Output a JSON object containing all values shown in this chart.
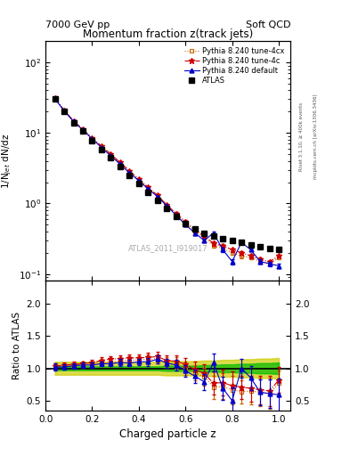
{
  "title_top_left": "7000 GeV pp",
  "title_top_right": "Soft QCD",
  "plot_title": "Momentum fraction z(track jets)",
  "ylabel_main": "1/N$_{jet}$ dN/dz",
  "ylabel_ratio": "Ratio to ATLAS",
  "xlabel": "Charged particle z",
  "right_label_top": "Rivet 3.1.10, ≥ 400k events",
  "right_label_bot": "mcplots.cern.ch [arXiv:1306.3436]",
  "watermark": "ATLAS_2011_I919017",
  "legend": [
    "ATLAS",
    "Pythia 8.240 default",
    "Pythia 8.240 tune-4c",
    "Pythia 8.240 tune-4cx"
  ],
  "z_values": [
    0.04,
    0.08,
    0.12,
    0.16,
    0.2,
    0.24,
    0.28,
    0.32,
    0.36,
    0.4,
    0.44,
    0.48,
    0.52,
    0.56,
    0.6,
    0.64,
    0.68,
    0.72,
    0.76,
    0.8,
    0.84,
    0.88,
    0.92,
    0.96,
    1.0
  ],
  "atlas_y": [
    30.0,
    20.0,
    14.0,
    10.5,
    7.8,
    5.8,
    4.4,
    3.3,
    2.5,
    1.9,
    1.45,
    1.1,
    0.85,
    0.65,
    0.52,
    0.43,
    0.38,
    0.35,
    0.32,
    0.3,
    0.28,
    0.26,
    0.24,
    0.23,
    0.22
  ],
  "atlas_err": [
    1.2,
    0.8,
    0.55,
    0.4,
    0.3,
    0.22,
    0.17,
    0.13,
    0.1,
    0.08,
    0.06,
    0.05,
    0.04,
    0.035,
    0.03,
    0.025,
    0.022,
    0.02,
    0.018,
    0.016,
    0.015,
    0.014,
    0.013,
    0.013,
    0.012
  ],
  "pythia_default_y": [
    30.5,
    20.5,
    14.5,
    11.0,
    8.2,
    6.2,
    4.7,
    3.6,
    2.7,
    2.1,
    1.6,
    1.25,
    0.92,
    0.68,
    0.5,
    0.38,
    0.3,
    0.38,
    0.22,
    0.15,
    0.28,
    0.22,
    0.15,
    0.14,
    0.13
  ],
  "pythia_default_err": [
    0.8,
    0.55,
    0.4,
    0.3,
    0.22,
    0.17,
    0.13,
    0.1,
    0.08,
    0.06,
    0.05,
    0.04,
    0.035,
    0.03,
    0.025,
    0.02,
    0.018,
    0.016,
    0.015,
    0.013,
    0.012,
    0.011,
    0.01,
    0.01,
    0.009
  ],
  "pythia_4c_y": [
    31.0,
    21.0,
    14.8,
    11.2,
    8.5,
    6.5,
    5.0,
    3.8,
    2.9,
    2.2,
    1.7,
    1.3,
    0.95,
    0.72,
    0.55,
    0.42,
    0.35,
    0.27,
    0.25,
    0.22,
    0.2,
    0.18,
    0.16,
    0.15,
    0.18
  ],
  "pythia_4c_err": [
    0.9,
    0.6,
    0.42,
    0.32,
    0.24,
    0.18,
    0.14,
    0.11,
    0.08,
    0.07,
    0.055,
    0.045,
    0.037,
    0.032,
    0.027,
    0.022,
    0.019,
    0.017,
    0.015,
    0.013,
    0.012,
    0.011,
    0.01,
    0.009,
    0.009
  ],
  "pythia_4cx_y": [
    30.8,
    20.8,
    14.6,
    11.0,
    8.3,
    6.3,
    4.8,
    3.7,
    2.8,
    2.15,
    1.65,
    1.27,
    0.93,
    0.7,
    0.52,
    0.4,
    0.33,
    0.25,
    0.23,
    0.2,
    0.18,
    0.17,
    0.15,
    0.14,
    0.17
  ],
  "pythia_4cx_err": [
    0.85,
    0.57,
    0.41,
    0.31,
    0.23,
    0.17,
    0.13,
    0.1,
    0.08,
    0.065,
    0.052,
    0.043,
    0.036,
    0.031,
    0.026,
    0.021,
    0.018,
    0.016,
    0.014,
    0.012,
    0.011,
    0.01,
    0.009,
    0.009,
    0.008
  ],
  "ratio_def": [
    1.02,
    1.02,
    1.04,
    1.05,
    1.05,
    1.07,
    1.07,
    1.09,
    1.08,
    1.1,
    1.1,
    1.14,
    1.08,
    1.05,
    0.96,
    0.88,
    0.79,
    1.09,
    0.69,
    0.5,
    1.0,
    0.85,
    0.63,
    0.61,
    0.59
  ],
  "ratio_def_err": [
    0.05,
    0.04,
    0.04,
    0.04,
    0.04,
    0.04,
    0.04,
    0.05,
    0.05,
    0.05,
    0.06,
    0.06,
    0.07,
    0.08,
    0.09,
    0.1,
    0.12,
    0.14,
    0.18,
    0.2,
    0.15,
    0.18,
    0.2,
    0.22,
    0.25
  ],
  "ratio_4c": [
    1.03,
    1.05,
    1.06,
    1.07,
    1.09,
    1.12,
    1.14,
    1.15,
    1.16,
    1.16,
    1.17,
    1.18,
    1.12,
    1.11,
    1.06,
    0.98,
    0.92,
    0.77,
    0.78,
    0.73,
    0.71,
    0.69,
    0.67,
    0.65,
    0.82
  ],
  "ratio_4c_err": [
    0.05,
    0.04,
    0.04,
    0.04,
    0.04,
    0.05,
    0.05,
    0.05,
    0.06,
    0.06,
    0.07,
    0.07,
    0.08,
    0.09,
    0.1,
    0.12,
    0.14,
    0.18,
    0.2,
    0.22,
    0.18,
    0.2,
    0.22,
    0.24,
    0.2
  ],
  "ratio_4cx": [
    1.03,
    1.04,
    1.04,
    1.05,
    1.06,
    1.09,
    1.09,
    1.12,
    1.12,
    1.13,
    1.14,
    1.15,
    1.09,
    1.08,
    1.0,
    0.93,
    0.87,
    0.71,
    0.72,
    0.67,
    0.64,
    0.65,
    0.63,
    0.61,
    0.77
  ],
  "ratio_4cx_err": [
    0.05,
    0.04,
    0.04,
    0.04,
    0.04,
    0.05,
    0.05,
    0.05,
    0.06,
    0.06,
    0.07,
    0.07,
    0.08,
    0.09,
    0.1,
    0.12,
    0.14,
    0.18,
    0.2,
    0.22,
    0.18,
    0.2,
    0.22,
    0.24,
    0.2
  ],
  "green_band_lo": [
    0.97,
    0.97,
    0.97,
    0.97,
    0.97,
    0.97,
    0.97,
    0.97,
    0.97,
    0.97,
    0.97,
    0.97,
    0.96,
    0.96,
    0.96,
    0.96,
    0.95,
    0.95,
    0.94,
    0.94,
    0.93,
    0.93,
    0.92,
    0.92,
    0.91
  ],
  "green_band_hi": [
    1.03,
    1.03,
    1.03,
    1.03,
    1.03,
    1.03,
    1.03,
    1.03,
    1.03,
    1.03,
    1.03,
    1.03,
    1.04,
    1.04,
    1.04,
    1.04,
    1.05,
    1.05,
    1.06,
    1.06,
    1.07,
    1.07,
    1.08,
    1.08,
    1.09
  ],
  "yellow_band_lo": [
    0.9,
    0.9,
    0.9,
    0.9,
    0.9,
    0.9,
    0.9,
    0.9,
    0.9,
    0.9,
    0.9,
    0.9,
    0.89,
    0.89,
    0.89,
    0.89,
    0.88,
    0.88,
    0.87,
    0.87,
    0.86,
    0.86,
    0.85,
    0.85,
    0.84
  ],
  "yellow_band_hi": [
    1.1,
    1.1,
    1.1,
    1.1,
    1.1,
    1.1,
    1.1,
    1.1,
    1.1,
    1.1,
    1.1,
    1.1,
    1.11,
    1.11,
    1.11,
    1.11,
    1.12,
    1.12,
    1.13,
    1.13,
    1.14,
    1.14,
    1.15,
    1.15,
    1.16
  ],
  "xlim": [
    0.0,
    1.05
  ],
  "ylim_main": [
    0.08,
    200.0
  ],
  "ylim_ratio": [
    0.35,
    2.35
  ],
  "yticks_ratio": [
    0.5,
    1.0,
    1.5,
    2.0
  ],
  "color_atlas": "#000000",
  "color_default": "#0000cc",
  "color_4c": "#cc0000",
  "color_4cx": "#cc6600",
  "color_green": "#00bb00",
  "color_yellow": "#cccc00",
  "bg_color": "#ffffff"
}
